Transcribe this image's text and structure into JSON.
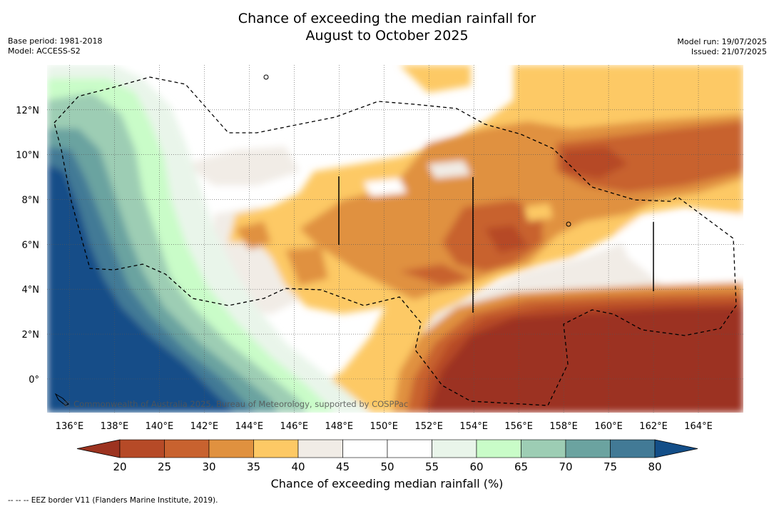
{
  "header": {
    "title_line1": "Chance of exceeding the median rainfall for",
    "title_line2": "August to October 2025",
    "base_period": "Base period: 1981-2018",
    "model": "Model: ACCESS-S2",
    "model_run": "Model run: 19/07/2025",
    "issued": "Issued: 21/07/2025"
  },
  "map": {
    "lon_labels": [
      "136°E",
      "138°E",
      "140°E",
      "142°E",
      "144°E",
      "146°E",
      "148°E",
      "150°E",
      "152°E",
      "154°E",
      "156°E",
      "158°E",
      "160°E",
      "162°E",
      "164°E"
    ],
    "lon_values": [
      136,
      138,
      140,
      142,
      144,
      146,
      148,
      150,
      152,
      154,
      156,
      158,
      160,
      162,
      164
    ],
    "lat_labels": [
      "12°N",
      "10°N",
      "8°N",
      "6°N",
      "4°N",
      "2°N",
      "0°"
    ],
    "lat_values": [
      12,
      10,
      8,
      6,
      4,
      2,
      0
    ],
    "lon_range": [
      135,
      166
    ],
    "lat_range": [
      -1.5,
      14
    ],
    "copyright": "© Commonwealth of Australia 2025, Bureau of Meteorology, supported by COSPPac"
  },
  "colorbar": {
    "ticks": [
      "20",
      "25",
      "30",
      "35",
      "40",
      "45",
      "50",
      "55",
      "60",
      "65",
      "70",
      "75",
      "80"
    ],
    "colors": [
      "#9c3320",
      "#b64a27",
      "#c8622f",
      "#e0913f",
      "#fdc965",
      "#f1ece6",
      "#ffffff",
      "#ffffff",
      "#e9f5ea",
      "#c9fcc8",
      "#9dcdb4",
      "#6ba3a0",
      "#427a96",
      "#134e88"
    ],
    "label": "Chance of exceeding median rainfall (%)"
  },
  "footnote": "--  --  -- EEZ border V11 (Flanders Marine Institute, 2019)."
}
